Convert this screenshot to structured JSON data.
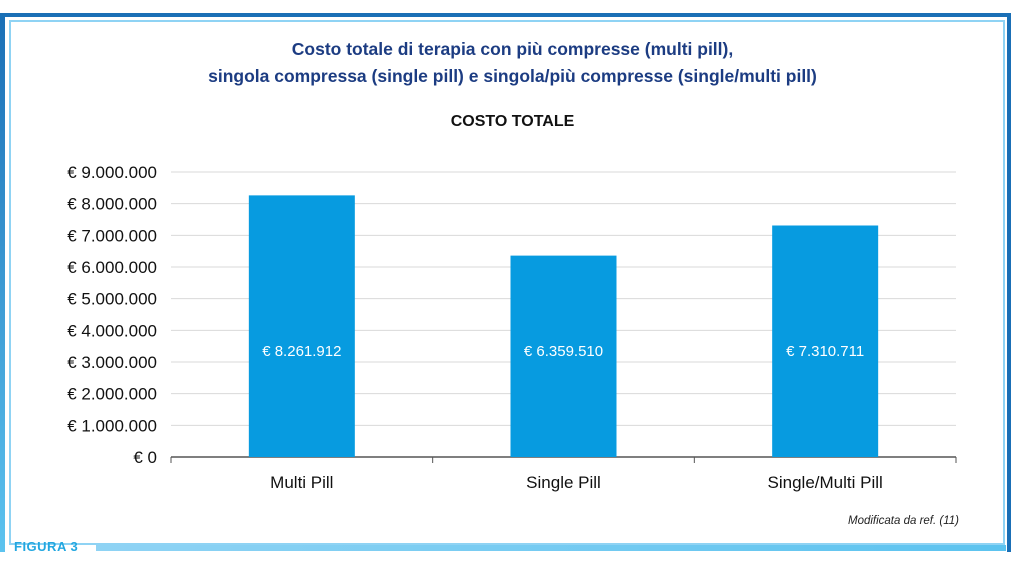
{
  "figure": {
    "title_line1": "Costo totale di terapia con più compresse (multi pill),",
    "title_line2": "singola compressa (single pill) e singola/più compresse (single/multi pill)",
    "label": "FIGURA 3",
    "footnote": "Modificata da ref. (11)"
  },
  "colors": {
    "bar": "#079be0",
    "title": "#1c3c82",
    "frame": "#1a6fb6",
    "frame_inner": "#8fd3f4"
  },
  "chart_data": {
    "type": "bar",
    "title": "COSTO TOTALE",
    "categories": [
      "Multi Pill",
      "Single Pill",
      "Single/Multi Pill"
    ],
    "values": [
      8261912,
      6359510,
      7310711
    ],
    "data_labels": [
      "€ 8.261.912",
      "€ 6.359.510",
      "€ 7.310.711"
    ],
    "ylim": [
      0,
      9000000
    ],
    "yticks": [
      0,
      1000000,
      2000000,
      3000000,
      4000000,
      5000000,
      6000000,
      7000000,
      8000000,
      9000000
    ],
    "ytick_labels": [
      "€ 0",
      "€ 1.000.000",
      "€ 2.000.000",
      "€ 3.000.000",
      "€ 4.000.000",
      "€ 5.000.000",
      "€ 6.000.000",
      "€ 7.000.000",
      "€ 8.000.000",
      "€ 9.000.000"
    ],
    "grid": true,
    "legend": false
  }
}
